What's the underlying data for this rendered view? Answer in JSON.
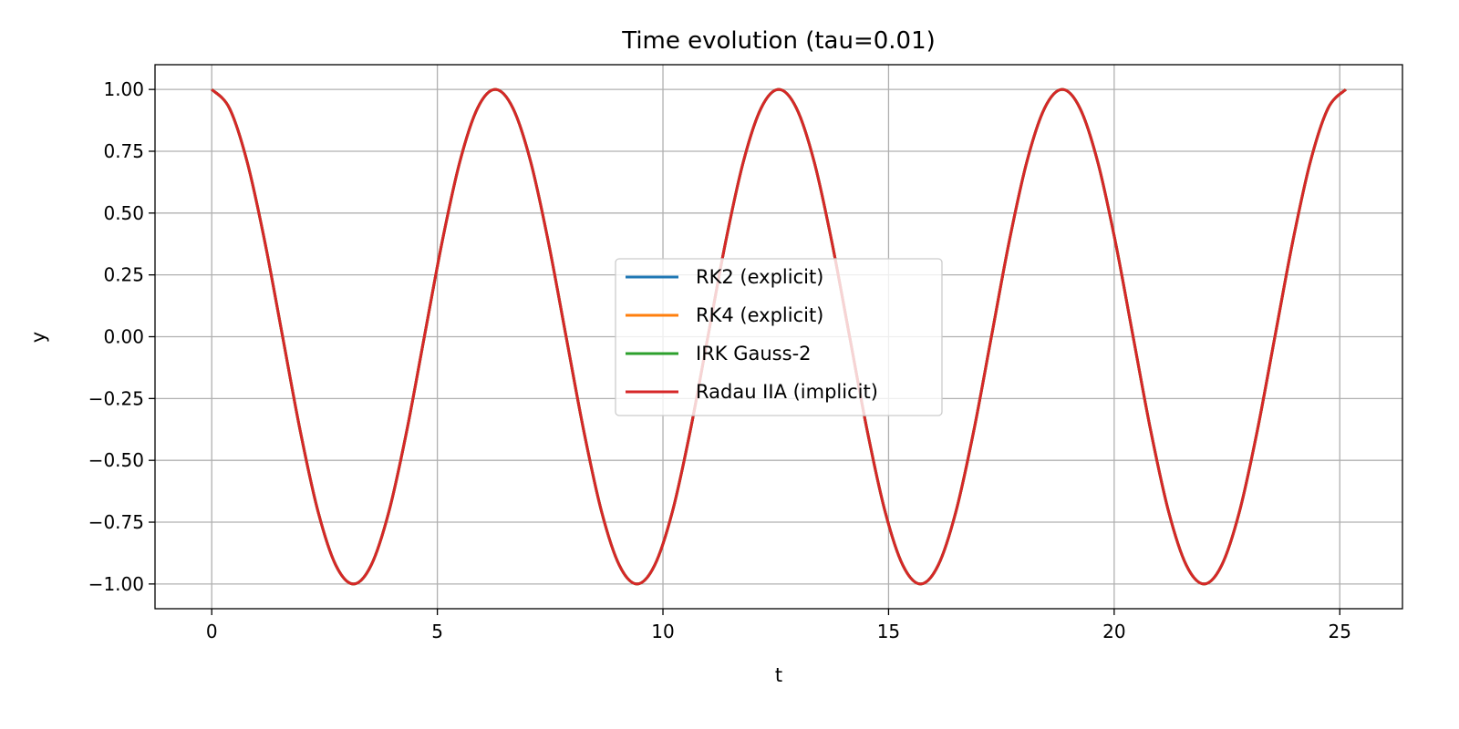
{
  "chart_data": {
    "type": "line",
    "title": "Time evolution (tau=0.01)",
    "xlabel": "t",
    "ylabel": "y",
    "xlim": [
      -1.257,
      26.389
    ],
    "ylim": [
      -1.1,
      1.1
    ],
    "grid": true,
    "legend_placement": "center",
    "xticks": [
      0,
      5,
      10,
      15,
      20,
      25
    ],
    "xtick_labels": [
      "0",
      "5",
      "10",
      "15",
      "20",
      "25"
    ],
    "yticks": [
      1.0,
      0.75,
      0.5,
      0.25,
      0.0,
      -0.25,
      -0.5,
      -0.75,
      -1.0
    ],
    "ytick_labels": [
      "1.00",
      "0.75",
      "0.50",
      "0.25",
      "0.00",
      "−0.25",
      "−0.50",
      "−0.75",
      "−1.00"
    ],
    "x": [
      0,
      0.393,
      0.785,
      1.178,
      1.571,
      1.963,
      2.356,
      2.749,
      3.142,
      3.534,
      3.927,
      4.32,
      4.712,
      5.105,
      5.498,
      5.89,
      6.283,
      6.676,
      7.069,
      7.461,
      7.854,
      8.247,
      8.639,
      9.032,
      9.425,
      9.817,
      10.21,
      10.603,
      10.996,
      11.388,
      11.781,
      12.174,
      12.566,
      12.959,
      13.352,
      13.744,
      14.137,
      14.53,
      14.923,
      15.315,
      15.708,
      16.101,
      16.493,
      16.886,
      17.279,
      17.671,
      18.064,
      18.457,
      18.85,
      19.242,
      19.635,
      20.028,
      20.42,
      20.813,
      21.206,
      21.598,
      21.991,
      22.384,
      22.777,
      23.169,
      23.562,
      23.955,
      24.347,
      24.74,
      25.133
    ],
    "y_all_series": [
      1,
      0.9239,
      0.7071,
      0.3827,
      0,
      -0.3827,
      -0.7071,
      -0.9239,
      -1,
      -0.9239,
      -0.7071,
      -0.3827,
      0,
      0.3827,
      0.7071,
      0.9239,
      1,
      0.9239,
      0.7071,
      0.3827,
      0,
      -0.3827,
      -0.7071,
      -0.9239,
      -1,
      -0.9239,
      -0.7071,
      -0.3827,
      0,
      0.3827,
      0.7071,
      0.9239,
      1,
      0.9239,
      0.7071,
      0.3827,
      0,
      -0.3827,
      -0.7071,
      -0.9239,
      -1,
      -0.9239,
      -0.7071,
      -0.3827,
      0,
      0.3827,
      0.7071,
      0.9239,
      1,
      0.9239,
      0.7071,
      0.3827,
      0,
      -0.3827,
      -0.7071,
      -0.9239,
      -1,
      -0.9239,
      -0.7071,
      -0.3827,
      0,
      0.3827,
      0.7071,
      0.9239,
      1
    ],
    "series": [
      {
        "name": "RK2 (explicit)",
        "color": "#1f77b4"
      },
      {
        "name": "RK4 (explicit)",
        "color": "#ff7f0e"
      },
      {
        "name": "IRK Gauss-2",
        "color": "#2ca02c"
      },
      {
        "name": "Radau IIA (implicit)",
        "color": "#d62728"
      }
    ]
  }
}
